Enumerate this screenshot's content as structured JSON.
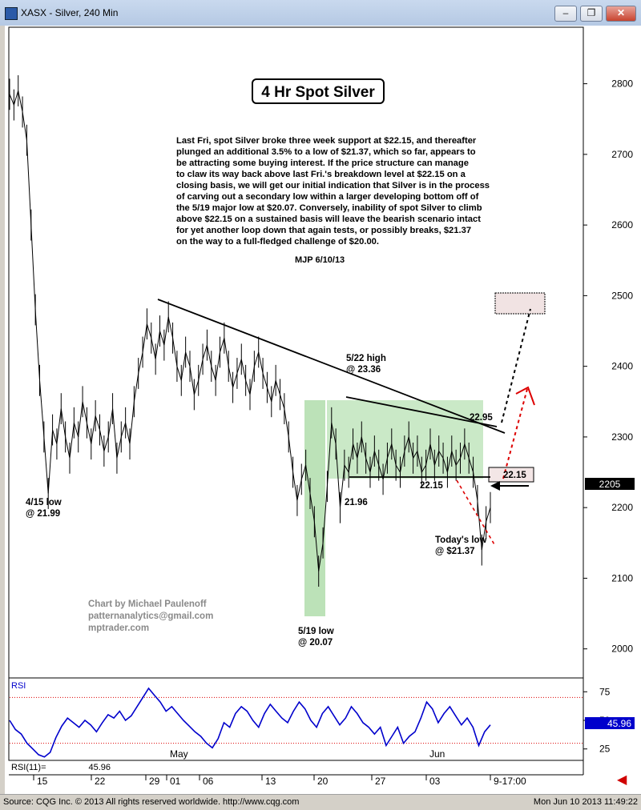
{
  "window": {
    "title": "XASX - Silver, 240 Min",
    "buttons": {
      "minimize": "–",
      "maximize": "□",
      "close": "✕",
      "restore": "❐"
    }
  },
  "status_bar": {
    "source": "Source: CQG Inc. © 2013 All rights reserved worldwide. http://www.cqg.com",
    "timestamp": "Mon Jun 10 2013 11:49:22"
  },
  "chart_data": {
    "type": "line",
    "title": "4 Hr Spot Silver",
    "commentary": "Last Fri, spot Silver broke three week support at $22.15, and thereafter\nplunged an additional 3.5% to a low of $21.37, which so far, appears to\nbe attracting some buying interest.  If the price structure can manage\nto claw its way back above last Fri.'s breakdown level at $22.15 on a\nclosing basis, we will get our initial indication that Silver is in the process\nof carving out a secondary low within a larger developing bottom off of\nthe 5/19 major low at $20.07.  Conversely, inability of spot Silver to climb\nabove $22.15 on a sustained basis will leave the bearish scenario intact\nfor yet another loop down that again tests, or possibly breaks, $21.37\non the way to a full-fledged challenge of $20.00.",
    "signature": "MJP  6/10/13",
    "credit": [
      "Chart by Michael Paulenoff",
      "patternanalytics@gmail.com",
      "mptrader.com"
    ],
    "y_axis": {
      "ticks": [
        "2800",
        "2700",
        "2600",
        "2500",
        "2400",
        "2300",
        "2200",
        "2100",
        "2000"
      ],
      "ylim": [
        1960,
        2880
      ]
    },
    "last_price_label": "2205",
    "x_axis": {
      "ticks": [
        "15",
        "22",
        "29",
        "01",
        "06",
        "13",
        "20",
        "27",
        "03",
        "9-17:00"
      ],
      "months": [
        "May",
        "Jun"
      ]
    },
    "annotations": {
      "apr15_low": "4/15 low\n@ 21.99",
      "may19_low": "5/19 low\n@ 20.07",
      "may22_high": "5/22 high\n@ 23.36",
      "support_2196": "21.96",
      "support_2215": "22.15",
      "level_2295": "22.95",
      "level_2215_box": "22.15",
      "todays_low": "Today's low\n@ $21.37"
    },
    "price_series": [
      2785,
      2770,
      2790,
      2760,
      2720,
      2600,
      2480,
      2380,
      2300,
      2220,
      2310,
      2290,
      2340,
      2300,
      2270,
      2320,
      2300,
      2350,
      2320,
      2290,
      2330,
      2310,
      2280,
      2300,
      2340,
      2270,
      2300,
      2320,
      2290,
      2350,
      2390,
      2420,
      2460,
      2440,
      2410,
      2450,
      2430,
      2470,
      2440,
      2400,
      2380,
      2420,
      2400,
      2360,
      2380,
      2410,
      2430,
      2400,
      2380,
      2420,
      2440,
      2400,
      2370,
      2390,
      2410,
      2380,
      2360,
      2400,
      2420,
      2390,
      2370,
      2350,
      2380,
      2360,
      2340,
      2300,
      2250,
      2210,
      2240,
      2260,
      2220,
      2180,
      2110,
      2150,
      2230,
      2320,
      2290,
      2200,
      2260,
      2250,
      2290,
      2270,
      2300,
      2270,
      2250,
      2280,
      2260,
      2240,
      2270,
      2290,
      2260,
      2250,
      2280,
      2300,
      2270,
      2280,
      2250,
      2260,
      2290,
      2260,
      2280,
      2270,
      2250,
      2280,
      2260,
      2270,
      2290,
      2270,
      2250,
      2210,
      2140,
      2180,
      2200
    ],
    "rsi": {
      "label": "RSI",
      "footer_label": "RSI(11)=",
      "footer_value": "45.96",
      "value_label": "45.96",
      "ticks": [
        "75",
        "50",
        "25"
      ],
      "levels": [
        70,
        30
      ],
      "ylim": [
        15,
        85
      ],
      "values": [
        50,
        42,
        38,
        30,
        25,
        20,
        18,
        22,
        35,
        45,
        52,
        48,
        44,
        50,
        46,
        40,
        48,
        55,
        52,
        58,
        50,
        54,
        62,
        70,
        78,
        72,
        66,
        58,
        62,
        56,
        50,
        45,
        40,
        36,
        30,
        26,
        34,
        48,
        44,
        56,
        62,
        58,
        50,
        44,
        56,
        64,
        58,
        52,
        48,
        58,
        66,
        60,
        50,
        44,
        56,
        62,
        54,
        46,
        52,
        62,
        56,
        48,
        44,
        38,
        44,
        28,
        36,
        44,
        30,
        36,
        40,
        52,
        66,
        60,
        48,
        56,
        62,
        54,
        46,
        52,
        44,
        28,
        40,
        46
      ]
    },
    "colors": {
      "price": "#000000",
      "rsi": "#0000cc",
      "box_fill": "#a5d8a0",
      "dashed_red": "#dd0000",
      "target_box": "#f1e3e3"
    }
  }
}
